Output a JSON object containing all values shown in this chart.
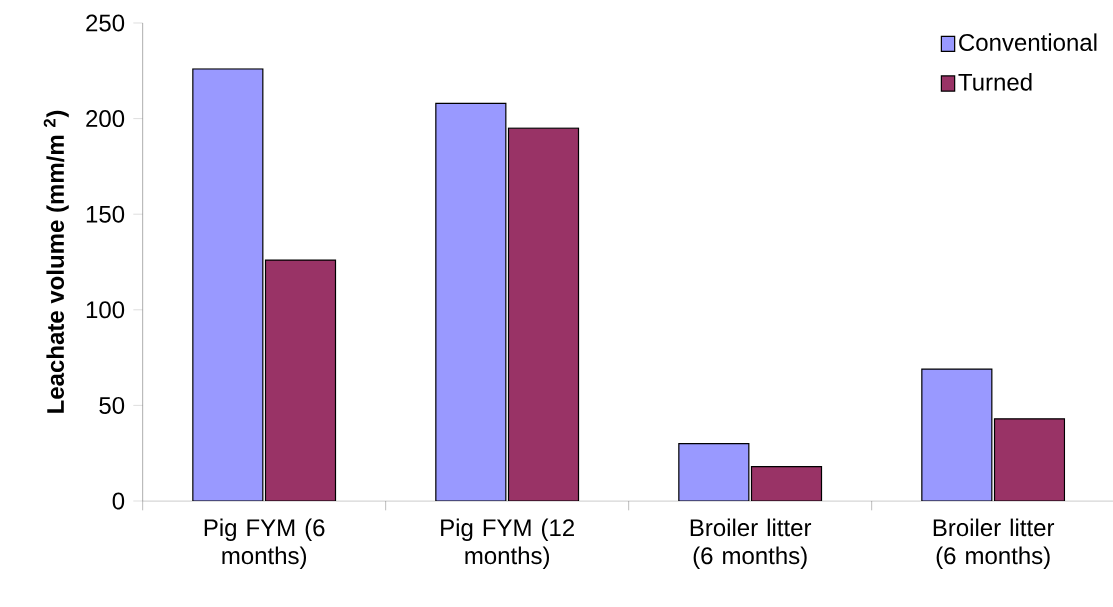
{
  "chart_data": {
    "type": "bar",
    "ylabel": "Leachate volume (mm/m $^{2}$)",
    "categories": [
      "Pig FYM (6 months)",
      "Pig FYM (12 months)",
      "Broiler litter (6 months)",
      "Broiler litter (6 months)"
    ],
    "series": [
      {
        "name": "Conventional",
        "color": "#9999ff",
        "values": [
          226,
          208,
          30,
          69
        ]
      },
      {
        "name": "Turned",
        "color": "#993366",
        "values": [
          126,
          195,
          18,
          43
        ]
      }
    ],
    "ylim": [
      0,
      250
    ],
    "yticks": [
      0,
      50,
      100,
      150,
      200,
      250
    ],
    "grid": false,
    "legend": "top right"
  }
}
